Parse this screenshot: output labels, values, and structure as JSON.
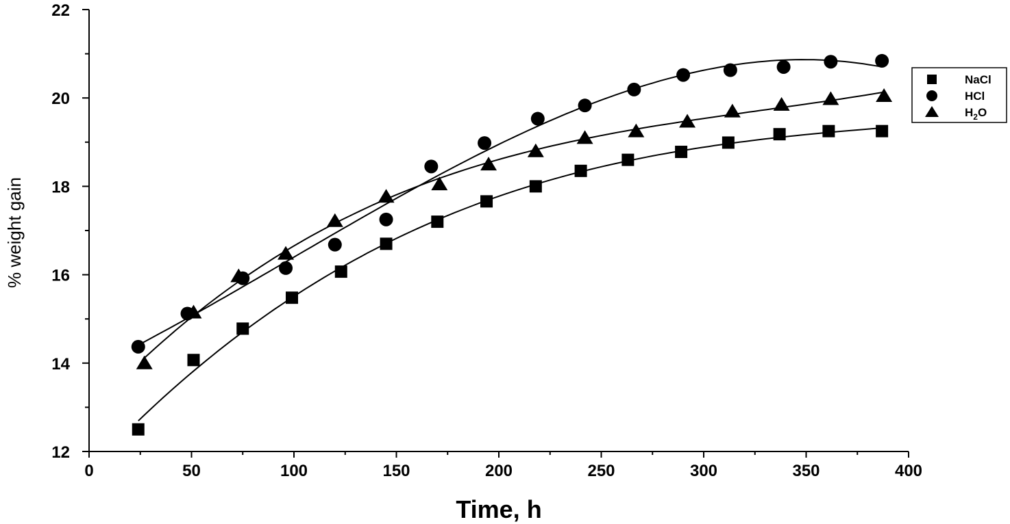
{
  "chart_data": {
    "type": "scatter",
    "title": "",
    "xlabel": "Time, h",
    "ylabel": "% weight gain",
    "xlim": [
      0,
      400
    ],
    "ylim": [
      12,
      22
    ],
    "xticks": [
      0,
      50,
      100,
      150,
      200,
      250,
      300,
      350,
      400
    ],
    "yticks": [
      12,
      14,
      16,
      18,
      20,
      22
    ],
    "grid": false,
    "legend_position": "right",
    "series": [
      {
        "name": "NaCl",
        "marker": "square",
        "color": "#000000",
        "fit_line": true,
        "x": [
          24,
          51,
          75,
          99,
          123,
          145,
          170,
          194,
          218,
          240,
          263,
          289,
          312,
          337,
          361,
          387
        ],
        "y": [
          12.5,
          14.07,
          14.78,
          15.48,
          16.07,
          16.7,
          17.2,
          17.66,
          18.0,
          18.35,
          18.6,
          18.78,
          18.99,
          19.18,
          19.25,
          19.25
        ]
      },
      {
        "name": "HCl",
        "marker": "circle",
        "color": "#000000",
        "fit_line": true,
        "x": [
          24,
          48,
          75,
          96,
          120,
          145,
          167,
          193,
          219,
          242,
          266,
          290,
          313,
          339,
          362,
          387
        ],
        "y": [
          14.37,
          15.12,
          15.92,
          16.15,
          16.68,
          17.25,
          18.45,
          18.98,
          19.53,
          19.83,
          20.19,
          20.52,
          20.63,
          20.7,
          20.82,
          20.84
        ]
      },
      {
        "name": "H2O",
        "label_parts": [
          "H",
          "2",
          "O"
        ],
        "marker": "triangle",
        "color": "#000000",
        "fit_line": true,
        "x": [
          27,
          51,
          73,
          96,
          120,
          145,
          171,
          195,
          218,
          242,
          267,
          292,
          314,
          338,
          362,
          388
        ],
        "y": [
          14.0,
          15.15,
          15.97,
          16.48,
          17.22,
          17.77,
          18.05,
          18.5,
          18.8,
          19.1,
          19.25,
          19.47,
          19.7,
          19.85,
          19.98,
          20.05
        ]
      }
    ]
  }
}
